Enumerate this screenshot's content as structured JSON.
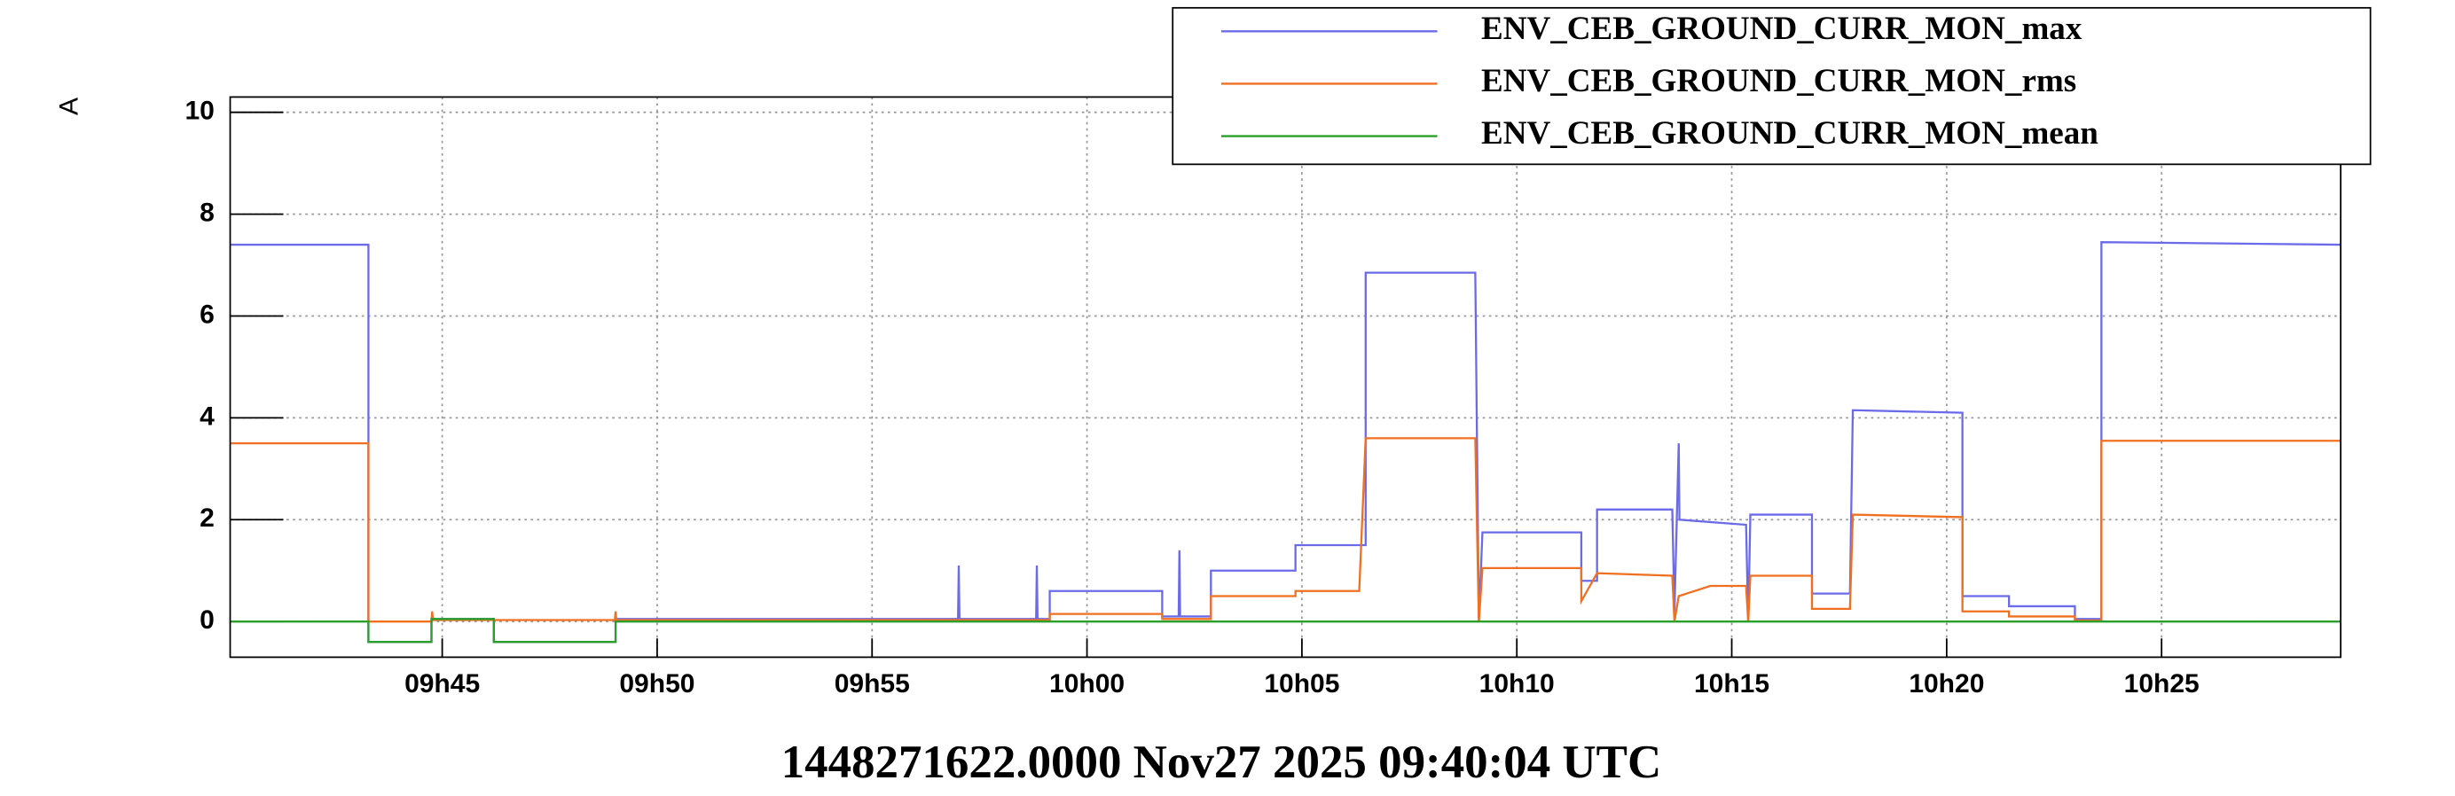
{
  "chart_data": {
    "type": "line",
    "title": "1448271622.0000 Nov27 2025 09:40:04 UTC",
    "y_label": "A",
    "xlim": [
      "09:40:04",
      "10:29:10"
    ],
    "xticks": [
      {
        "value": "09:45:00",
        "label": "09h45"
      },
      {
        "value": "09:50:00",
        "label": "09h50"
      },
      {
        "value": "09:55:00",
        "label": "09h55"
      },
      {
        "value": "10:00:00",
        "label": "10h00"
      },
      {
        "value": "10:05:00",
        "label": "10h05"
      },
      {
        "value": "10:10:00",
        "label": "10h10"
      },
      {
        "value": "10:15:00",
        "label": "10h15"
      },
      {
        "value": "10:20:00",
        "label": "10h20"
      },
      {
        "value": "10:25:00",
        "label": "10h25"
      }
    ],
    "ylim": [
      -0.7,
      10.3
    ],
    "yticks": [
      0,
      2,
      4,
      6,
      8,
      10
    ],
    "grid": true,
    "legend": "top-right",
    "series": [
      {
        "name": "ENV_CEB_GROUND_CURR_MON_max",
        "color": "#6b6bea",
        "x": [
          "09:40:04",
          "09:43:17",
          "09:43:17",
          "09:44:45",
          "09:44:45",
          "09:46:12",
          "09:46:12",
          "09:49:02",
          "09:49:02",
          "09:57:00",
          "09:57:01",
          "09:57:02",
          "09:58:49",
          "09:58:50",
          "09:58:51",
          "09:59:08",
          "09:59:08",
          "10:01:45",
          "10:01:45",
          "10:02:08",
          "10:02:09",
          "10:02:10",
          "10:02:53",
          "10:02:53",
          "10:04:51",
          "10:04:51",
          "10:06:29",
          "10:06:29",
          "10:09:02",
          "10:09:07",
          "10:09:12",
          "10:11:30",
          "10:11:30",
          "10:11:52",
          "10:11:52",
          "10:13:37",
          "10:13:40",
          "10:13:46",
          "10:13:47",
          "10:15:20",
          "10:15:23",
          "10:15:26",
          "10:16:52",
          "10:16:52",
          "10:17:45",
          "10:17:49",
          "10:20:22",
          "10:20:22",
          "10:21:27",
          "10:21:27",
          "10:22:59",
          "10:22:59",
          "10:23:36",
          "10:23:36",
          "10:29:10"
        ],
        "values": [
          7.4,
          7.4,
          -0.4,
          -0.4,
          0.05,
          0.05,
          -0.4,
          -0.4,
          0.05,
          0.05,
          1.1,
          0.05,
          0.05,
          1.1,
          0.05,
          0.05,
          0.6,
          0.6,
          0.1,
          0.1,
          1.4,
          0.1,
          0.1,
          1.0,
          1.0,
          1.5,
          1.5,
          6.85,
          6.85,
          0.0,
          1.75,
          1.75,
          0.8,
          0.8,
          2.2,
          2.2,
          0.2,
          3.5,
          2.0,
          1.9,
          0.0,
          2.1,
          2.1,
          0.55,
          0.55,
          4.15,
          4.1,
          0.5,
          0.5,
          0.3,
          0.3,
          0.05,
          0.05,
          7.45,
          7.4
        ]
      },
      {
        "name": "ENV_CEB_GROUND_CURR_MON_rms",
        "color": "#f07020",
        "x": [
          "09:40:04",
          "09:43:17",
          "09:43:17",
          "09:44:45",
          "09:44:46",
          "09:44:47",
          "09:49:01",
          "09:49:02",
          "09:49:03",
          "09:59:08",
          "09:59:08",
          "10:01:45",
          "10:01:45",
          "10:02:53",
          "10:02:53",
          "10:04:51",
          "10:04:51",
          "10:06:20",
          "10:06:29",
          "10:09:02",
          "10:09:07",
          "10:09:12",
          "10:11:30",
          "10:11:30",
          "10:11:52",
          "10:13:37",
          "10:13:40",
          "10:13:46",
          "10:14:30",
          "10:15:20",
          "10:15:23",
          "10:15:26",
          "10:16:52",
          "10:16:52",
          "10:17:45",
          "10:17:49",
          "10:20:22",
          "10:20:22",
          "10:21:27",
          "10:21:27",
          "10:22:59",
          "10:22:59",
          "10:23:36",
          "10:23:36",
          "10:29:10"
        ],
        "values": [
          3.5,
          3.5,
          0,
          0,
          0.2,
          0.03,
          0.03,
          0.2,
          0.03,
          0.03,
          0.15,
          0.15,
          0.05,
          0.05,
          0.5,
          0.5,
          0.6,
          0.6,
          3.6,
          3.6,
          0,
          1.05,
          1.05,
          0.4,
          0.95,
          0.9,
          0,
          0.5,
          0.7,
          0.7,
          0,
          0.9,
          0.9,
          0.25,
          0.25,
          2.1,
          2.05,
          0.2,
          0.2,
          0.1,
          0.1,
          0.02,
          0.02,
          3.55,
          3.55
        ]
      },
      {
        "name": "ENV_CEB_GROUND_CURR_MON_mean",
        "color": "#2aa02a",
        "x": [
          "09:40:04",
          "09:43:17",
          "09:43:17",
          "09:44:45",
          "09:44:45",
          "09:46:12",
          "09:46:12",
          "09:49:02",
          "09:49:02",
          "10:29:10"
        ],
        "values": [
          0,
          0,
          -0.4,
          -0.4,
          0.05,
          0.05,
          -0.4,
          -0.4,
          0,
          0
        ]
      }
    ]
  }
}
